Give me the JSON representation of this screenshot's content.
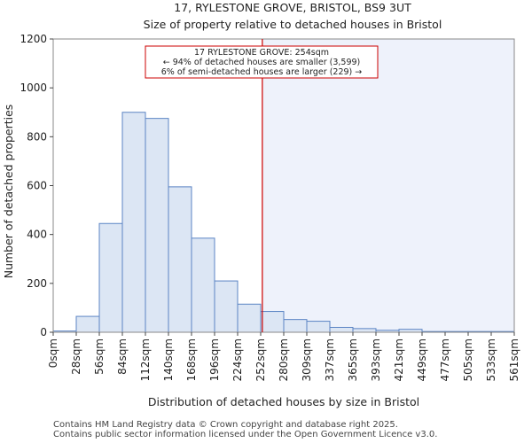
{
  "chart_data": {
    "type": "bar",
    "title": "17, RYLESTONE GROVE, BRISTOL, BS9 3UT",
    "subtitle": "Size of property relative to detached houses in Bristol",
    "xlabel": "Distribution of detached houses by size in Bristol",
    "ylabel": "Number of detached properties",
    "ylim": [
      0,
      1200
    ],
    "yticks": [
      0,
      200,
      400,
      600,
      800,
      1000,
      1200
    ],
    "bin_edges": [
      0,
      28,
      56,
      84,
      112,
      140,
      168,
      196,
      224,
      252,
      280,
      309,
      337,
      365,
      393,
      421,
      449,
      477,
      505,
      533,
      561
    ],
    "tick_labels": [
      "0sqm",
      "28sqm",
      "56sqm",
      "84sqm",
      "112sqm",
      "140sqm",
      "168sqm",
      "196sqm",
      "224sqm",
      "252sqm",
      "280sqm",
      "309sqm",
      "337sqm",
      "365sqm",
      "393sqm",
      "421sqm",
      "449sqm",
      "477sqm",
      "505sqm",
      "533sqm",
      "561sqm"
    ],
    "values": [
      5,
      65,
      445,
      900,
      875,
      595,
      385,
      210,
      115,
      85,
      52,
      45,
      20,
      15,
      8,
      12,
      3,
      3,
      3,
      3
    ],
    "marker": {
      "value": 254,
      "line1": "17 RYLESTONE GROVE: 254sqm",
      "line2": "← 94% of detached houses are smaller (3,599)",
      "line3": "6% of semi-detached houses are larger (229) →"
    },
    "colors": {
      "bar_fill": "#dce6f4",
      "bar_stroke": "#5b84c4",
      "marker": "#cc0000",
      "highlight": "#eef2fb"
    }
  },
  "footer": {
    "line1": "Contains HM Land Registry data © Crown copyright and database right 2025.",
    "line2": "Contains public sector information licensed under the Open Government Licence v3.0."
  }
}
